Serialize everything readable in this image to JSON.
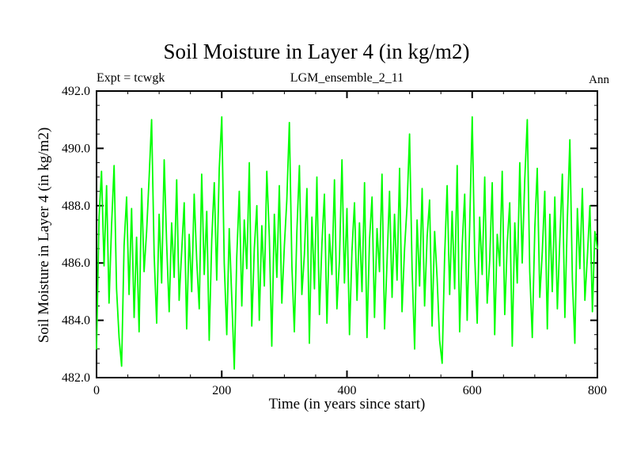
{
  "header": {
    "experiment": "Expt = tcwgk",
    "run": "LGM_ensemble_2_11",
    "period": "Ann"
  },
  "chart_data": {
    "type": "line",
    "title": "Soil Moisture in Layer 4 (in kg/m2)",
    "xlabel": "Time (in years since start)",
    "ylabel": "Soil Moisture in Layer 4 (in kg/m2)",
    "xlim": [
      0,
      800
    ],
    "ylim": [
      482.0,
      492.0
    ],
    "xticks": [
      0,
      200,
      400,
      600,
      800
    ],
    "yticks": [
      482.0,
      484.0,
      486.0,
      488.0,
      490.0,
      492.0
    ],
    "x_minor_step": 50,
    "y_minor_step": 0.5,
    "grid": false,
    "legend": "none",
    "background": "#ffffff",
    "axis_color": "#000000",
    "series": [
      {
        "name": "Soil Moisture in Layer 4",
        "color": "#00ff00",
        "x_start": 0,
        "x_step": 4,
        "values": [
          483.0,
          487.6,
          489.2,
          485.9,
          488.7,
          484.6,
          487.3,
          489.4,
          485.1,
          483.4,
          482.4,
          486.6,
          488.3,
          484.9,
          487.9,
          484.1,
          486.9,
          483.6,
          488.6,
          485.7,
          487.1,
          489.0,
          491.0,
          486.3,
          483.9,
          487.7,
          485.3,
          489.6,
          486.7,
          484.3,
          487.4,
          485.5,
          488.9,
          484.7,
          486.4,
          488.1,
          483.7,
          487.0,
          485.0,
          488.4,
          486.1,
          484.4,
          489.1,
          485.6,
          487.8,
          483.3,
          486.8,
          488.8,
          485.4,
          489.3,
          491.1,
          486.0,
          483.5,
          487.2,
          484.8,
          482.3,
          486.2,
          488.5,
          484.5,
          487.5,
          485.8,
          489.5,
          483.8,
          486.5,
          488.0,
          484.0,
          487.3,
          485.2,
          489.2,
          486.9,
          483.1,
          487.7,
          485.5,
          488.7,
          484.6,
          486.6,
          488.2,
          490.9,
          485.9,
          483.6,
          487.1,
          489.4,
          484.9,
          486.3,
          488.6,
          483.2,
          487.6,
          485.1,
          489.0,
          484.2,
          486.7,
          488.4,
          483.9,
          487.0,
          485.6,
          488.9,
          484.4,
          486.1,
          489.6,
          485.3,
          487.9,
          483.5,
          486.4,
          488.1,
          484.7,
          487.4,
          485.0,
          488.8,
          483.4,
          486.8,
          488.3,
          484.1,
          487.2,
          485.7,
          489.1,
          483.7,
          486.0,
          488.5,
          484.8,
          487.7,
          485.4,
          489.3,
          484.3,
          486.5,
          488.0,
          490.5,
          485.8,
          483.0,
          487.5,
          485.2,
          488.6,
          484.5,
          486.9,
          488.2,
          483.8,
          487.1,
          485.5,
          483.3,
          482.5,
          486.2,
          488.7,
          484.9,
          487.8,
          485.1,
          489.4,
          483.6,
          486.6,
          488.4,
          484.0,
          487.3,
          491.1,
          486.3,
          483.9,
          487.6,
          485.6,
          489.0,
          484.6,
          486.1,
          488.8,
          483.5,
          487.0,
          485.9,
          489.2,
          484.2,
          486.7,
          488.1,
          483.1,
          487.4,
          485.3,
          489.5,
          486.0,
          488.9,
          491.0,
          485.7,
          483.4,
          487.2,
          489.3,
          484.8,
          486.4,
          488.5,
          483.7,
          487.7,
          485.0,
          488.3,
          484.4,
          486.8,
          489.1,
          484.1,
          487.5,
          490.3,
          485.4,
          483.2,
          487.9,
          485.8,
          488.6,
          484.7,
          486.2,
          488.0,
          484.3,
          487.1,
          486.5
        ]
      }
    ]
  }
}
